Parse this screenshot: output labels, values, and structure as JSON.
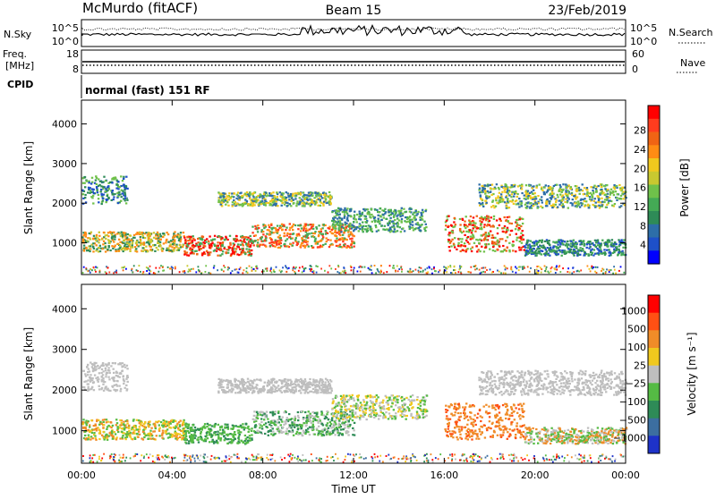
{
  "header": {
    "title": "McMurdo (fitACF)",
    "beam": "Beam 15",
    "date": "23/Feb/2019"
  },
  "top_panels": {
    "nsky_label": "N.Sky",
    "nsearch_label": "N.Search",
    "noise_ticks": [
      "10^5",
      "10^0"
    ],
    "freq_label_1": "Freq.",
    "freq_label_2": "[MHz]",
    "freq_ticks": [
      "18",
      "8"
    ],
    "nave_label": "Nave",
    "nave_ticks": [
      "60",
      "0"
    ],
    "cpid_label": "CPID",
    "cpid_text": "normal (fast) 151 RF"
  },
  "chart_data": [
    {
      "type": "heatmap",
      "name": "power",
      "ylabel": "Slant Range [km]",
      "ylim": [
        200,
        4600
      ],
      "yticks": [
        "1000",
        "2000",
        "3000",
        "4000"
      ],
      "xticks": [
        "00:00",
        "04:00",
        "08:00",
        "12:00",
        "16:00",
        "20:00",
        "00:00"
      ],
      "colorbar_label": "Power [dB]",
      "colorbar_ticks": [
        "4",
        "8",
        "12",
        "16",
        "20",
        "24",
        "28"
      ],
      "colorbar_colors": [
        "#0000ff",
        "#1e50c8",
        "#2d6ea8",
        "#2e8b57",
        "#44aa55",
        "#6fc14a",
        "#c8c830",
        "#f0c81e",
        "#ff8c14",
        "#f06414",
        "#ff3c1e",
        "#ff0000"
      ]
    },
    {
      "type": "heatmap",
      "name": "velocity",
      "ylabel": "Slant Range [km]",
      "ylim": [
        200,
        4600
      ],
      "yticks": [
        "1000",
        "2000",
        "3000",
        "4000"
      ],
      "xticks": [
        "00:00",
        "04:00",
        "08:00",
        "12:00",
        "16:00",
        "20:00",
        "00:00"
      ],
      "xlabel": "Time UT",
      "colorbar_label": "Velocity [m s⁻¹]",
      "colorbar_ticks": [
        "1000",
        "500",
        "100",
        "25",
        "−25",
        "−100",
        "−500",
        "−1000"
      ],
      "colorbar_colors": [
        "#1e32c8",
        "#3c6ea0",
        "#2e8b57",
        "#55bb44",
        "#bebebe",
        "#f0c81e",
        "#f08c28",
        "#ff5014",
        "#ff0000"
      ]
    }
  ]
}
